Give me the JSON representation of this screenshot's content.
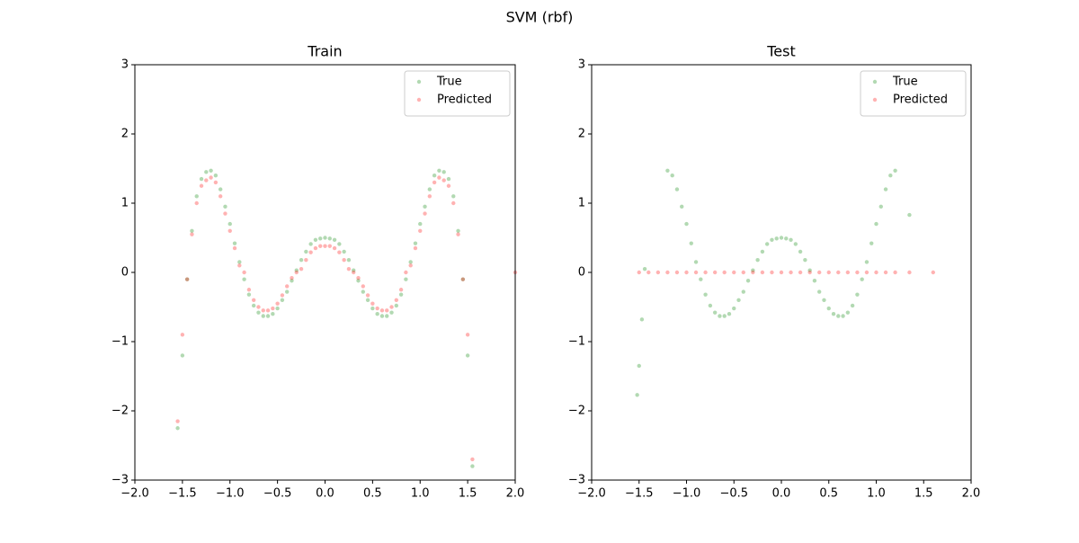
{
  "title": "SVM (rbf)",
  "chart_data": [
    {
      "type": "scatter",
      "title": "Train",
      "xlim": [
        -2,
        2
      ],
      "ylim": [
        -3,
        3
      ],
      "xticks": [
        {
          "value": -2,
          "label": "−2.0"
        },
        {
          "value": -1.5,
          "label": "−1.5"
        },
        {
          "value": -1,
          "label": "−1.0"
        },
        {
          "value": -0.5,
          "label": "−0.5"
        },
        {
          "value": 0,
          "label": "0.0"
        },
        0.5,
        {
          "value": 1,
          "label": "1.0"
        },
        1.5,
        {
          "value": 2,
          "label": "2.0"
        }
      ],
      "yticks": [
        {
          "value": -3,
          "label": "−3"
        },
        {
          "value": -2,
          "label": "−2"
        },
        {
          "value": -1,
          "label": "−1"
        },
        0,
        1,
        2,
        3
      ],
      "legend": "upper right",
      "alpha": 0.3,
      "series": [
        {
          "name": "True",
          "color": "#008000",
          "x": [
            -1.55,
            -1.5,
            -1.45,
            -1.4,
            -1.35,
            -1.3,
            -1.25,
            -1.2,
            -1.15,
            -1.1,
            -1.05,
            -1.0,
            -0.95,
            -0.9,
            -0.85,
            -0.8,
            -0.75,
            -0.7,
            -0.65,
            -0.6,
            -0.55,
            -0.5,
            -0.45,
            -0.4,
            -0.35,
            -0.3,
            -0.25,
            -0.2,
            -0.15,
            -0.1,
            -0.05,
            0,
            0.05,
            0.1,
            0.15,
            0.2,
            0.25,
            0.3,
            0.35,
            0.4,
            0.45,
            0.5,
            0.55,
            0.6,
            0.65,
            0.7,
            0.75,
            0.8,
            0.85,
            0.9,
            0.95,
            1.0,
            1.05,
            1.1,
            1.15,
            1.2,
            1.25,
            1.3,
            1.35,
            1.4,
            1.45,
            1.5,
            1.55
          ],
          "values": [
            -2.25,
            -1.2,
            -0.1,
            0.6,
            1.1,
            1.35,
            1.45,
            1.47,
            1.4,
            1.2,
            0.95,
            0.7,
            0.42,
            0.15,
            -0.1,
            -0.32,
            -0.48,
            -0.58,
            -0.63,
            -0.63,
            -0.6,
            -0.52,
            -0.4,
            -0.28,
            -0.12,
            0.03,
            0.18,
            0.3,
            0.41,
            0.47,
            0.49,
            0.5,
            0.49,
            0.47,
            0.41,
            0.3,
            0.18,
            0.03,
            -0.12,
            -0.28,
            -0.4,
            -0.52,
            -0.6,
            -0.63,
            -0.63,
            -0.58,
            -0.48,
            -0.32,
            -0.1,
            0.15,
            0.42,
            0.7,
            0.95,
            1.2,
            1.4,
            1.47,
            1.45,
            1.35,
            1.1,
            0.6,
            -0.1,
            -1.2,
            -2.8
          ]
        },
        {
          "name": "Predicted",
          "color": "#ff0000",
          "x": [
            -1.55,
            -1.5,
            -1.45,
            -1.4,
            -1.35,
            -1.3,
            -1.25,
            -1.2,
            -1.15,
            -1.1,
            -1.05,
            -1.0,
            -0.95,
            -0.9,
            -0.85,
            -0.8,
            -0.75,
            -0.7,
            -0.65,
            -0.6,
            -0.55,
            -0.5,
            -0.45,
            -0.4,
            -0.35,
            -0.3,
            -0.25,
            -0.2,
            -0.15,
            -0.1,
            -0.05,
            0,
            0.05,
            0.1,
            0.15,
            0.2,
            0.25,
            0.3,
            0.35,
            0.4,
            0.45,
            0.5,
            0.55,
            0.6,
            0.65,
            0.7,
            0.75,
            0.8,
            0.85,
            0.9,
            0.95,
            1.0,
            1.05,
            1.1,
            1.15,
            1.2,
            1.25,
            1.3,
            1.35,
            1.4,
            1.45,
            1.5,
            1.55,
            2.0
          ],
          "values": [
            -2.15,
            -0.9,
            -0.1,
            0.55,
            1.0,
            1.25,
            1.33,
            1.37,
            1.3,
            1.1,
            0.85,
            0.6,
            0.35,
            0.1,
            0,
            -0.25,
            -0.4,
            -0.5,
            -0.55,
            -0.55,
            -0.52,
            -0.45,
            -0.33,
            -0.2,
            -0.08,
            0,
            0.05,
            0.18,
            0.29,
            0.35,
            0.38,
            0.38,
            0.38,
            0.35,
            0.29,
            0.18,
            0.05,
            0,
            -0.08,
            -0.2,
            -0.33,
            -0.45,
            -0.52,
            -0.55,
            -0.55,
            -0.5,
            -0.4,
            -0.25,
            0,
            0.1,
            0.35,
            0.6,
            0.85,
            1.1,
            1.3,
            1.37,
            1.33,
            1.25,
            1.0,
            0.55,
            -0.1,
            -0.9,
            -2.7,
            0
          ]
        }
      ]
    },
    {
      "type": "scatter",
      "title": "Test",
      "xlim": [
        -2,
        2
      ],
      "ylim": [
        -3,
        3
      ],
      "xticks": [
        {
          "value": -2,
          "label": "−2.0"
        },
        {
          "value": -1.5,
          "label": "−1.5"
        },
        {
          "value": -1,
          "label": "−1.0"
        },
        {
          "value": -0.5,
          "label": "−0.5"
        },
        {
          "value": 0,
          "label": "0.0"
        },
        0.5,
        {
          "value": 1,
          "label": "1.0"
        },
        1.5,
        {
          "value": 2,
          "label": "2.0"
        }
      ],
      "yticks": [
        {
          "value": -3,
          "label": "−3"
        },
        {
          "value": -2,
          "label": "−2"
        },
        {
          "value": -1,
          "label": "−1"
        },
        0,
        1,
        2,
        3
      ],
      "legend": "upper right",
      "alpha": 0.3,
      "series": [
        {
          "name": "True",
          "color": "#008000",
          "x": [
            -1.52,
            -1.5,
            -1.47,
            -1.44,
            -1.2,
            -1.15,
            -1.1,
            -1.05,
            -1.0,
            -0.95,
            -0.9,
            -0.85,
            -0.8,
            -0.75,
            -0.7,
            -0.65,
            -0.6,
            -0.55,
            -0.5,
            -0.45,
            -0.4,
            -0.35,
            -0.3,
            -0.25,
            -0.2,
            -0.15,
            -0.1,
            -0.05,
            0,
            0.05,
            0.1,
            0.15,
            0.2,
            0.25,
            0.3,
            0.35,
            0.4,
            0.45,
            0.5,
            0.55,
            0.6,
            0.65,
            0.7,
            0.75,
            0.8,
            0.85,
            0.9,
            0.95,
            1.0,
            1.05,
            1.1,
            1.15,
            1.2,
            1.35
          ],
          "values": [
            -1.77,
            -1.35,
            -0.68,
            0.05,
            1.47,
            1.4,
            1.2,
            0.95,
            0.7,
            0.42,
            0.15,
            -0.1,
            -0.32,
            -0.48,
            -0.58,
            -0.63,
            -0.63,
            -0.6,
            -0.52,
            -0.4,
            -0.28,
            -0.12,
            0.03,
            0.18,
            0.3,
            0.41,
            0.47,
            0.49,
            0.5,
            0.49,
            0.47,
            0.41,
            0.3,
            0.18,
            0.03,
            -0.12,
            -0.28,
            -0.4,
            -0.52,
            -0.6,
            -0.63,
            -0.63,
            -0.58,
            -0.48,
            -0.32,
            -0.1,
            0.15,
            0.42,
            0.7,
            0.95,
            1.2,
            1.4,
            1.47,
            0.83
          ]
        },
        {
          "name": "Predicted",
          "color": "#ff0000",
          "x": [
            -1.5,
            -1.4,
            -1.3,
            -1.2,
            -1.1,
            -1.0,
            -0.9,
            -0.8,
            -0.7,
            -0.6,
            -0.5,
            -0.4,
            -0.3,
            -0.2,
            -0.1,
            0,
            0.1,
            0.2,
            0.3,
            0.4,
            0.5,
            0.6,
            0.7,
            0.8,
            0.9,
            1.0,
            1.1,
            1.2,
            1.35,
            1.6
          ],
          "values": [
            0,
            0,
            0,
            0,
            0,
            0,
            0,
            0,
            0,
            0,
            0,
            0,
            0,
            0,
            0,
            0,
            0,
            0,
            0,
            0,
            0,
            0,
            0,
            0,
            0,
            0,
            0,
            0,
            0,
            0
          ]
        }
      ]
    }
  ]
}
